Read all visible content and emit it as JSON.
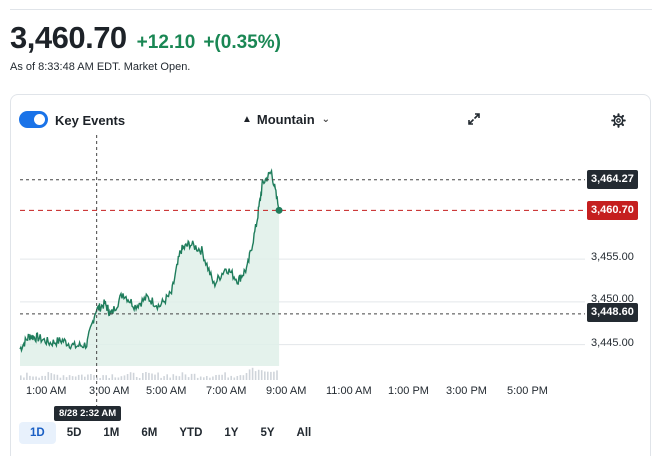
{
  "quote": {
    "price": "3,460.70",
    "change": "+12.10",
    "change_pct": "+(0.35%)",
    "as_of": "As of 8:33:48 AM EDT. Market Open."
  },
  "controls": {
    "key_events_label": "Key Events",
    "key_events_on": true,
    "chart_type_label": "Mountain",
    "icons": [
      "mountain-icon",
      "chevron-down-icon",
      "expand-icon",
      "gear-icon"
    ]
  },
  "axis": {
    "y_labels": [
      "3,455.00",
      "3,450.00",
      "3,445.00"
    ],
    "price_tags": {
      "high": "3,464.27",
      "last": "3,460.70",
      "low": "3,448.60"
    },
    "x_labels": [
      "1:00 AM",
      "3:00 AM",
      "5:00 AM",
      "7:00 AM",
      "9:00 AM",
      "11:00 AM",
      "1:00 PM",
      "3:00 PM",
      "5:00 PM"
    ]
  },
  "crosshair_label": "8/28 2:32 AM",
  "ranges": [
    "1D",
    "5D",
    "1M",
    "6M",
    "YTD",
    "1Y",
    "5Y",
    "All"
  ],
  "active_range": "1D",
  "colors": {
    "up": "#1a8754",
    "line": "#1f7d5c",
    "fill": "#dff0e9",
    "last_tag": "#c51f1f",
    "dark_tag": "#232a31",
    "accent": "#1a73e8"
  },
  "chart_data": {
    "type": "area",
    "x_unit": "time (hours after midnight)",
    "ylim": [
      3442.5,
      3466.0
    ],
    "series": [
      {
        "x": [
          0.0,
          0.3,
          0.6,
          1.0,
          1.4,
          1.8,
          2.2,
          2.5,
          2.8,
          3.0,
          3.4,
          3.8,
          4.2,
          4.6,
          5.0,
          5.3,
          5.6,
          6.0,
          6.4,
          6.8,
          7.2,
          7.5,
          7.8,
          8.0,
          8.3,
          8.55
        ],
        "y": [
          3444.5,
          3446.0,
          3445.8,
          3445.2,
          3445.5,
          3444.8,
          3445.0,
          3449.0,
          3449.8,
          3448.5,
          3451.0,
          3449.5,
          3450.5,
          3449.5,
          3451.0,
          3456.0,
          3456.8,
          3456.0,
          3452.0,
          3454.0,
          3452.5,
          3454.0,
          3459.0,
          3463.8,
          3465.2,
          3460.7
        ]
      }
    ],
    "high": 3464.27,
    "last": 3460.7,
    "low": 3448.6
  }
}
